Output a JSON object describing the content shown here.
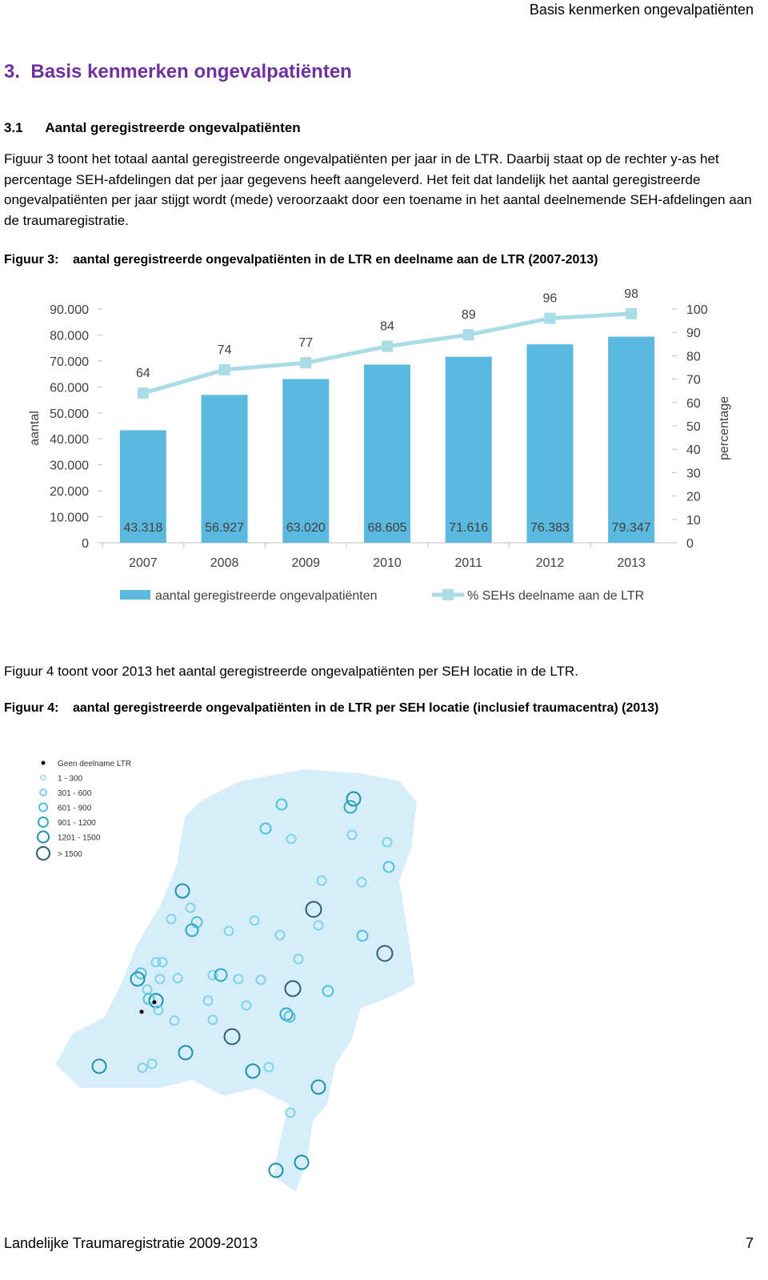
{
  "header": {
    "running_title": "Basis kenmerken ongevalpatiënten"
  },
  "section": {
    "number": "3.",
    "title": "Basis kenmerken ongevalpatiënten"
  },
  "subsection": {
    "number": "3.1",
    "title": "Aantal geregistreerde ongevalpatiënten"
  },
  "paragraphs": [
    "Figuur 3 toont het totaal aantal geregistreerde ongevalpatiënten per jaar in de LTR. Daarbij staat op de rechter y-as het percentage SEH-afdelingen dat per jaar gegevens heeft aangeleverd. Het feit dat landelijk het aantal geregistreerde ongevalpatiënten per jaar stijgt wordt (mede) veroorzaakt door een toename in het aantal deelnemende SEH-afdelingen aan de traumaregistratie.",
    "Figuur 4 toont voor 2013 het aantal geregistreerde ongevalpatiënten per SEH locatie in de LTR."
  ],
  "figures": [
    {
      "label": "Figuur 3:",
      "caption": "aantal geregistreerde ongevalpatiënten in de LTR en deelname aan de LTR (2007-2013)"
    },
    {
      "label": "Figuur 4:",
      "caption": "aantal geregistreerde ongevalpatiënten in de LTR per SEH locatie (inclusief traumacentra) (2013)"
    }
  ],
  "chart_data": {
    "type": "bar",
    "categories": [
      "2007",
      "2008",
      "2009",
      "2010",
      "2011",
      "2012",
      "2013"
    ],
    "y_label": "aantal",
    "y2_label": "percentage",
    "ylim": [
      0,
      90000
    ],
    "yticks": [
      0,
      {
        "value": 10000,
        "label": "10.000"
      },
      {
        "value": 20000,
        "label": "20.000"
      },
      {
        "value": 30000,
        "label": "30.000"
      },
      {
        "value": 40000,
        "label": "40.000"
      },
      {
        "value": 50000,
        "label": "50.000"
      },
      {
        "value": 60000,
        "label": "60.000"
      },
      {
        "value": 70000,
        "label": "70.000"
      },
      {
        "value": 80000,
        "label": "80.000"
      },
      {
        "value": 90000,
        "label": "90.000"
      }
    ],
    "y2lim": [
      0,
      100
    ],
    "y2ticks": [
      0,
      10,
      20,
      30,
      40,
      50,
      60,
      70,
      80,
      90,
      100
    ],
    "series": [
      {
        "name": "aantal geregistreerde ongevalpatiënten",
        "color": "#5bb8de",
        "values": [
          43318,
          56927,
          63020,
          68605,
          71616,
          76383,
          79347
        ],
        "value_labels": [
          "43.318",
          "56.927",
          "63.020",
          "68.605",
          "71.616",
          "76.383",
          "79.347"
        ]
      },
      {
        "name": "% SEHs deelname aan de LTR",
        "color": "#a9dce6",
        "type": "line",
        "axis": "y2",
        "values": [
          64,
          74,
          77,
          84,
          89,
          96,
          98
        ]
      }
    ]
  },
  "map_legend": [
    "Geen deelname LTR",
    "1 - 300",
    "301 - 600",
    "601 - 900",
    "901 - 1200",
    "1201 - 1500",
    "> 1500"
  ],
  "footer": {
    "text": "Landelijke Traumaregistratie 2009-2013",
    "page": "7"
  }
}
